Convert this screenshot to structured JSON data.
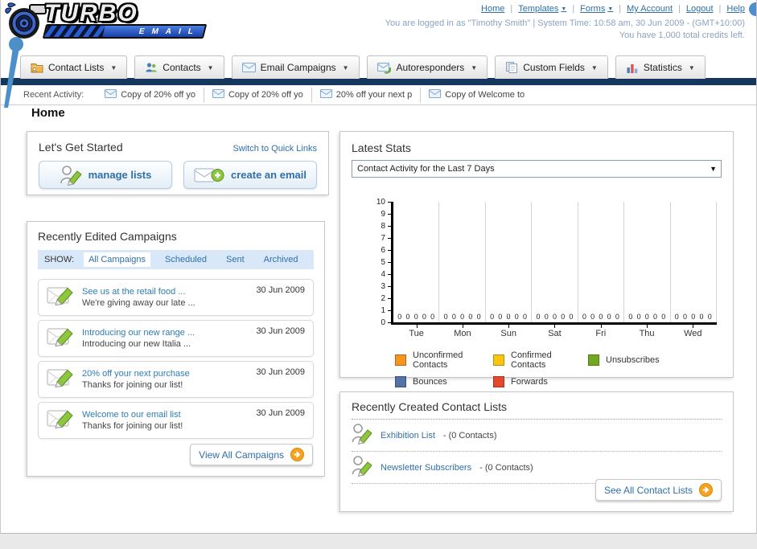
{
  "colors": {
    "accent_blue": "#2f6fa7",
    "navy_bar": "#16375d",
    "action_orange": "#f6a21d"
  },
  "header": {
    "logo": {
      "title": "TURBO",
      "subtitle": "EMAIL"
    },
    "nav": [
      {
        "label": "Home",
        "dropdown": false
      },
      {
        "label": "Templates",
        "dropdown": true
      },
      {
        "label": "Forms",
        "dropdown": true
      },
      {
        "label": "My Account",
        "dropdown": false
      },
      {
        "label": "Logout",
        "dropdown": false
      },
      {
        "label": "Help",
        "dropdown": false
      }
    ],
    "login_line": "You are logged in as \"Timothy Smith\" | System Time: 10:58 am, 30 Jun 2009 - (GMT+10:00)",
    "credits_line": "You have 1,000 total credits left."
  },
  "tabs": [
    {
      "label": "Contact Lists",
      "icon": "contact-lists-icon"
    },
    {
      "label": "Contacts",
      "icon": "contacts-icon"
    },
    {
      "label": "Email Campaigns",
      "icon": "email-campaigns-icon"
    },
    {
      "label": "Autoresponders",
      "icon": "autoresponders-icon"
    },
    {
      "label": "Custom Fields",
      "icon": "custom-fields-icon"
    },
    {
      "label": "Statistics",
      "icon": "statistics-icon"
    }
  ],
  "recent_activity": {
    "label": "Recent Activity:",
    "items": [
      "Copy of 20% off yo",
      "Copy of 20% off yo",
      "20% off your next p",
      "Copy of Welcome to"
    ]
  },
  "page_title": "Home",
  "get_started": {
    "title": "Let's Get Started",
    "switch_link": "Switch to Quick Links",
    "buttons": [
      {
        "label": "manage lists",
        "icon": "manage-lists-icon"
      },
      {
        "label": "create an email",
        "icon": "create-email-icon"
      }
    ]
  },
  "campaigns": {
    "title": "Recently Edited Campaigns",
    "filter_label": "SHOW:",
    "filters": [
      {
        "label": "All Campaigns",
        "selected": true
      },
      {
        "label": "Scheduled",
        "selected": false
      },
      {
        "label": "Sent",
        "selected": false
      },
      {
        "label": "Archived",
        "selected": false
      }
    ],
    "items": [
      {
        "title": "See us at the retail food ...",
        "subtitle": "We're giving away our late ...",
        "date": "30 Jun 2009"
      },
      {
        "title": "Introducing our new range ...",
        "subtitle": "Introducing our new Italia ...",
        "date": "30 Jun 2009"
      },
      {
        "title": "20% off your next purchase",
        "subtitle": "Thanks for joining our list!",
        "date": "30 Jun 2009"
      },
      {
        "title": "Welcome to our email list",
        "subtitle": "Thanks for joining our list!",
        "date": "30 Jun 2009"
      }
    ],
    "view_all_label": "View All Campaigns"
  },
  "stats": {
    "title": "Latest Stats",
    "dropdown_value": "Contact Activity for the Last 7 Days"
  },
  "chart_data": {
    "type": "bar",
    "categories": [
      "Tue",
      "Mon",
      "Sun",
      "Sat",
      "Fri",
      "Thu",
      "Wed"
    ],
    "series": [
      {
        "name": "Unconfirmed Contacts",
        "color": "#f7941d",
        "values": [
          0,
          0,
          0,
          0,
          0,
          0,
          0
        ]
      },
      {
        "name": "Confirmed Contacts",
        "color": "#fdc40f",
        "values": [
          0,
          0,
          0,
          0,
          0,
          0,
          0
        ]
      },
      {
        "name": "Unsubscribes",
        "color": "#72a81e",
        "values": [
          0,
          0,
          0,
          0,
          0,
          0,
          0
        ]
      },
      {
        "name": "Bounces",
        "color": "#5572a7",
        "values": [
          0,
          0,
          0,
          0,
          0,
          0,
          0
        ]
      },
      {
        "name": "Forwards",
        "color": "#e5492d",
        "values": [
          0,
          0,
          0,
          0,
          0,
          0,
          0
        ]
      }
    ],
    "title": "Contact Activity for the Last 7 Days",
    "xlabel": "",
    "ylabel": "",
    "ylim": [
      0,
      10
    ],
    "yticks": [
      0,
      1,
      2,
      3,
      4,
      5,
      6,
      7,
      8,
      9,
      10
    ],
    "grid": true,
    "legend_position": "bottom",
    "value_labels_shown": true
  },
  "contact_lists": {
    "title": "Recently Created Contact Lists",
    "items": [
      {
        "name": "Exhibition List",
        "detail": "- (0 Contacts)"
      },
      {
        "name": "Newsletter Subscribers",
        "detail": "- (0 Contacts)"
      }
    ],
    "see_all_label": "See All Contact Lists"
  }
}
